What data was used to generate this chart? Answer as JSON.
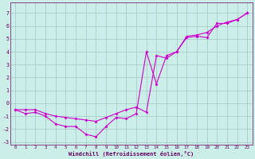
{
  "xlabel": "Windchill (Refroidissement éolien,°C)",
  "background_color": "#cceee8",
  "grid_color": "#aacccc",
  "line_color": "#cc00cc",
  "line1_x": [
    0,
    1,
    2,
    3,
    4,
    5,
    6,
    7,
    8,
    9,
    10,
    11,
    12,
    13,
    14,
    15,
    16,
    17,
    18,
    19,
    20,
    21,
    22,
    23
  ],
  "line1_y": [
    -0.5,
    -0.8,
    -0.7,
    -1.0,
    -1.6,
    -1.8,
    -1.8,
    -2.4,
    -2.6,
    -1.8,
    -1.1,
    -1.2,
    -0.8,
    4.0,
    1.5,
    3.7,
    4.0,
    5.1,
    5.2,
    5.1,
    6.2,
    6.2,
    6.5,
    7.0
  ],
  "line2_x": [
    0,
    1,
    2,
    3,
    4,
    5,
    6,
    7,
    8,
    9,
    10,
    11,
    12,
    13,
    14,
    15,
    16,
    17,
    18,
    19,
    20,
    21,
    22,
    23
  ],
  "line2_y": [
    -0.5,
    -0.5,
    -0.5,
    -0.8,
    -1.0,
    -1.1,
    -1.2,
    -1.3,
    -1.4,
    -1.1,
    -0.8,
    -0.5,
    -0.3,
    -0.7,
    3.7,
    3.5,
    4.0,
    5.2,
    5.3,
    5.5,
    6.0,
    6.3,
    6.5,
    7.0
  ],
  "xlim": [
    -0.5,
    23.5
  ],
  "ylim": [
    -3.2,
    7.8
  ],
  "xticks": [
    0,
    1,
    2,
    3,
    4,
    5,
    6,
    7,
    8,
    9,
    10,
    11,
    12,
    13,
    14,
    15,
    16,
    17,
    18,
    19,
    20,
    21,
    22,
    23
  ],
  "yticks": [
    -3,
    -2,
    -1,
    0,
    1,
    2,
    3,
    4,
    5,
    6,
    7
  ]
}
